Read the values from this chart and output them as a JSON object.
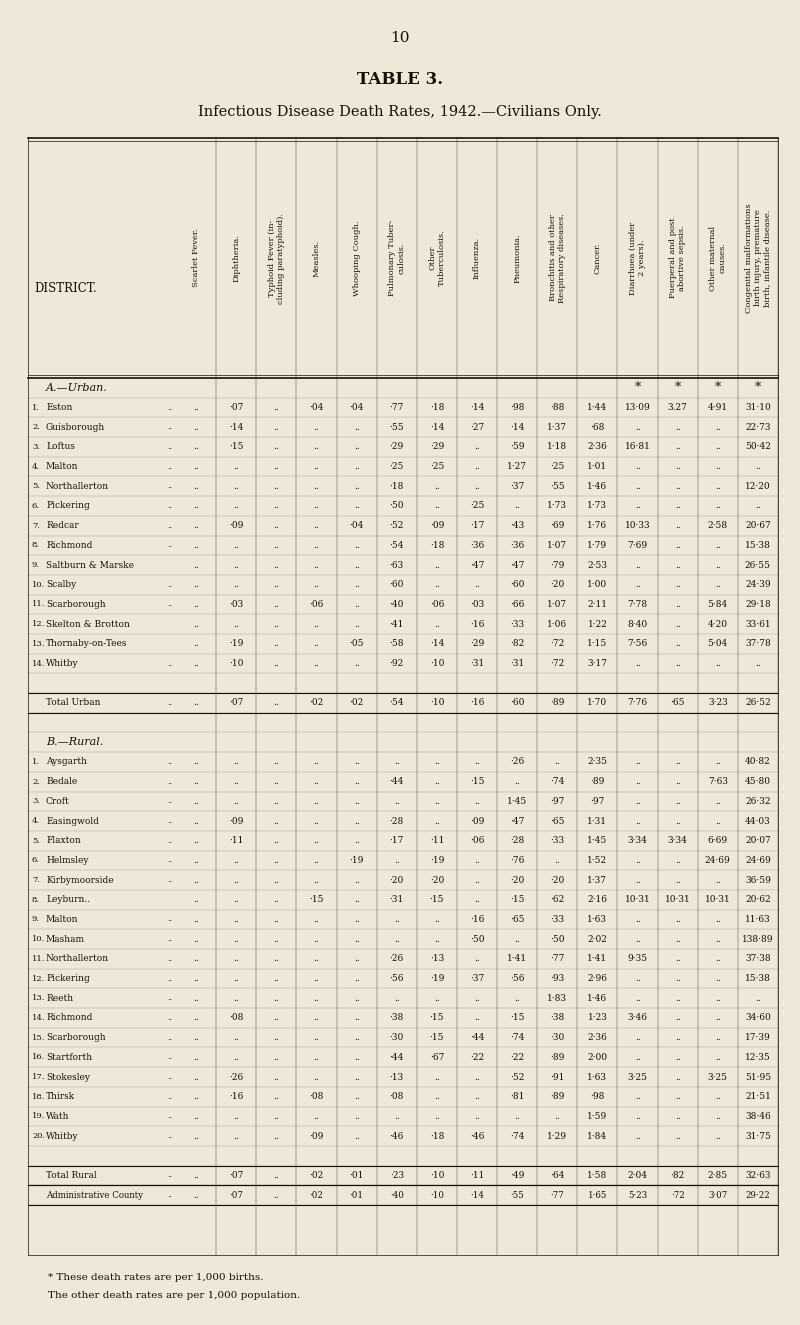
{
  "page_number": "10",
  "title": "TABLE 3.",
  "subtitle": "Infectious Disease Death Rates, 1942.—Civilians Only.",
  "background_color": "#ede8d8",
  "text_color": "#1a0f08",
  "col_headers": [
    "Scarlet Fever.",
    "Diphtheria.",
    "Typhoid Fever (in-\ncluding paratyphoid).",
    "Measles.",
    "Whooping Cough.",
    "Pulmonary Tuber-\nculosis.",
    "Other\nTuberculosis.",
    "Influenza.",
    "Pneumonia.",
    "Bronchitis and other\nRespiratory diseases.",
    "Cancer.",
    "Diarrhoea (under\n2 years).",
    "Puerperal and post\nabortive sepsis.",
    "Other maternal\ncauses.",
    "Congenital malformations\nbirth injury, premature\nbirth, infantile disease."
  ],
  "section_a_header": "A.—Urban.",
  "urban_rows": [
    {
      "num": "1.",
      "name": "Eston",
      "trail": "..",
      "vals": [
        "..",
        "·07",
        "..",
        "·04",
        "·04",
        "·77",
        "·18",
        "·14",
        "·98",
        "·88",
        "1·44",
        "13·09",
        "3.27",
        "4·91",
        "31·10"
      ]
    },
    {
      "num": "2.",
      "name": "Guisborough",
      "trail": "..",
      "vals": [
        "..",
        "·14",
        "..",
        "..",
        "..",
        "·55",
        "·14",
        "·27",
        "·14",
        "1·37",
        "·68",
        "..",
        "..",
        "..",
        "22·73"
      ]
    },
    {
      "num": "3.",
      "name": "Loftus",
      "trail": "..",
      "vals": [
        "..",
        "·15",
        "..",
        "..",
        "..",
        "·29",
        "·29",
        "..",
        "·59",
        "1·18",
        "2·36",
        "16·81",
        "..",
        "..",
        "50·42"
      ]
    },
    {
      "num": "4.",
      "name": "Malton",
      "trail": "..",
      "vals": [
        "..",
        "..",
        "..",
        "..",
        "..",
        "·25",
        "·25",
        "..",
        "1·27",
        "·25",
        "1·01",
        "..",
        "..",
        "..",
        ".."
      ]
    },
    {
      "num": "5.",
      "name": "Northallerton",
      "trail": "..",
      "vals": [
        "..",
        "..",
        "..",
        "..",
        "..",
        "·18",
        "..",
        "..",
        "·37",
        "·55",
        "1·46",
        "..",
        "..",
        "..",
        "12·20"
      ]
    },
    {
      "num": "6.",
      "name": "Pickering",
      "trail": "..",
      "vals": [
        "..",
        "..",
        "..",
        "..",
        "..",
        "·50",
        "..",
        "·25",
        "..",
        "1·73",
        "1·73",
        "..",
        "..",
        "..",
        ".."
      ]
    },
    {
      "num": "7.",
      "name": "Redcar",
      "trail": "..",
      "vals": [
        "..",
        "·09",
        "..",
        "..",
        "·04",
        "·52",
        "·09",
        "·17",
        "·43",
        "·69",
        "1·76",
        "10·33",
        "..",
        "2·58",
        "20·67"
      ]
    },
    {
      "num": "8.",
      "name": "Richmond",
      "trail": "..",
      "vals": [
        "..",
        "..",
        "..",
        "..",
        "..",
        "·54",
        "·18",
        "·36",
        "·36",
        "1·07",
        "1·79",
        "7·69",
        "..",
        "..",
        "15·38"
      ]
    },
    {
      "num": "9.",
      "name": "Saltburn & Marske",
      "trail": "",
      "vals": [
        "..",
        "..",
        "..",
        "..",
        "..",
        "·63",
        "..",
        "·47",
        "·47",
        "·79",
        "2·53",
        "..",
        "..",
        "..",
        "26·55"
      ]
    },
    {
      "num": "10.",
      "name": "Scalby",
      "trail": "..",
      "vals": [
        "..",
        "..",
        "..",
        "..",
        "..",
        "·60",
        "..",
        "..",
        "·60",
        "·20",
        "1·00",
        "..",
        "..",
        "..",
        "24·39"
      ]
    },
    {
      "num": "11.",
      "name": "Scarborough",
      "trail": "..",
      "vals": [
        "..",
        "·03",
        "..",
        "·06",
        "..",
        "·40",
        "·06",
        "·03",
        "·66",
        "1·07",
        "2·11",
        "7·78",
        "..",
        "5·84",
        "29·18"
      ]
    },
    {
      "num": "12.",
      "name": "Skelton & Brotton",
      "trail": "",
      "vals": [
        "..",
        "..",
        "..",
        "..",
        "..",
        "·41",
        "..",
        "·16",
        "·33",
        "1·06",
        "1·22",
        "8·40",
        "..",
        "4·20",
        "33·61"
      ]
    },
    {
      "num": "13.",
      "name": "Thornaby-on-Tees",
      "trail": "",
      "vals": [
        "..",
        "·19",
        "..",
        "..",
        "·05",
        "·58",
        "·14",
        "·29",
        "·82",
        "·72",
        "1·15",
        "7·56",
        "..",
        "5·04",
        "37·78"
      ]
    },
    {
      "num": "14.",
      "name": "Whitby",
      "trail": "..",
      "vals": [
        "..",
        "·10",
        "..",
        "..",
        "..",
        "·92",
        "·10",
        "·31",
        "·31",
        "·72",
        "3·17",
        "..",
        "..",
        "..",
        ".."
      ]
    }
  ],
  "urban_total": {
    "label": "Total Urban",
    "trail": "..",
    "vals": [
      "..",
      "·07",
      "..",
      "·02",
      "·02",
      "·54",
      "·10",
      "·16",
      "·60",
      "·89",
      "1·70",
      "7·76",
      "·65",
      "3·23",
      "26·52"
    ]
  },
  "section_b_header": "B.—Rural.",
  "rural_rows": [
    {
      "num": "1.",
      "name": "Aysgarth",
      "trail": "..",
      "vals": [
        "..",
        "..",
        "..",
        "..",
        "..",
        "..",
        "..",
        "..",
        "·26",
        "..",
        "2·35",
        "..",
        "..",
        "..",
        "40·82"
      ]
    },
    {
      "num": "2.",
      "name": "Bedale",
      "trail": "..",
      "vals": [
        "..",
        "..",
        "..",
        "..",
        "..",
        "·44",
        "..",
        "·15",
        "..",
        "·74",
        "·89",
        "..",
        "..",
        "7·63",
        "45·80"
      ]
    },
    {
      "num": "3.",
      "name": "Croft",
      "trail": "..",
      "vals": [
        "..",
        "..",
        "..",
        "..",
        "..",
        "..",
        "..",
        "..",
        "1·45",
        "·97",
        "·97",
        "..",
        "..",
        "..",
        "26·32"
      ]
    },
    {
      "num": "4.",
      "name": "Easingwold",
      "trail": "..",
      "vals": [
        "..",
        "·09",
        "..",
        "..",
        "..",
        "·28",
        "..",
        "·09",
        "·47",
        "·65",
        "1·31",
        "..",
        "..",
        "..",
        "44·03"
      ]
    },
    {
      "num": "5.",
      "name": "Flaxton",
      "trail": "..",
      "vals": [
        "..",
        "·11",
        "..",
        "..",
        "..",
        "·17",
        "·11",
        "·06",
        "·28",
        "·33",
        "1·45",
        "3·34",
        "3·34",
        "6·69",
        "20·07"
      ]
    },
    {
      "num": "6.",
      "name": "Helmsley",
      "trail": "..",
      "vals": [
        "..",
        "..",
        "..",
        "..",
        "·19",
        "..",
        "·19",
        "..",
        "·76",
        "..",
        "1·52",
        "..",
        "..",
        "24·69",
        "24·69"
      ]
    },
    {
      "num": "7.",
      "name": "Kirbymoorside",
      "trail": "..",
      "vals": [
        "..",
        "..",
        "..",
        "..",
        "..",
        "·20",
        "·20",
        "..",
        "·20",
        "·20",
        "1·37",
        "..",
        "..",
        "..",
        "36·59"
      ]
    },
    {
      "num": "8.",
      "name": "Leyburn..",
      "trail": "",
      "vals": [
        "..",
        "..",
        "..",
        "·15",
        "..",
        "·31",
        "·15",
        "..",
        "·15",
        "·62",
        "2·16",
        "10·31",
        "10·31",
        "10·31",
        "20·62"
      ]
    },
    {
      "num": "9.",
      "name": "Malton",
      "trail": "..",
      "vals": [
        "..",
        "..",
        "..",
        "..",
        "..",
        "..",
        "..",
        "·16",
        "·65",
        "·33",
        "1·63",
        "..",
        "..",
        "..",
        "11·63"
      ]
    },
    {
      "num": "10.",
      "name": "Masham",
      "trail": "..",
      "vals": [
        "..",
        "..",
        "..",
        "..",
        "..",
        "..",
        "..",
        "·50",
        "..",
        "·50",
        "2·02",
        "..",
        "..",
        "..",
        "138·89"
      ]
    },
    {
      "num": "11.",
      "name": "Northallerton",
      "trail": "..",
      "vals": [
        "..",
        "..",
        "..",
        "..",
        "..",
        "·26",
        "·13",
        "..",
        "1·41",
        "·77",
        "1·41",
        "9·35",
        "..",
        "..",
        "37·38"
      ]
    },
    {
      "num": "12.",
      "name": "Pickering",
      "trail": "..",
      "vals": [
        "..",
        "..",
        "..",
        "..",
        "..",
        "·56",
        "·19",
        "·37",
        "·56",
        "·93",
        "2·96",
        "..",
        "..",
        "..",
        "15·38"
      ]
    },
    {
      "num": "13.",
      "name": "Reeth",
      "trail": "..",
      "vals": [
        "..",
        "..",
        "..",
        "..",
        "..",
        "..",
        "..",
        "..",
        "..",
        "1·83",
        "1·46",
        "..",
        "..",
        "..",
        ".."
      ]
    },
    {
      "num": "14.",
      "name": "Richmond",
      "trail": "..",
      "vals": [
        "..",
        "·08",
        "..",
        "..",
        "..",
        "·38",
        "·15",
        "..",
        "·15",
        "·38",
        "1·23",
        "3·46",
        "..",
        "..",
        "34·60"
      ]
    },
    {
      "num": "15.",
      "name": "Scarborough",
      "trail": "..",
      "vals": [
        "..",
        "..",
        "..",
        "..",
        "..",
        "·30",
        "·15",
        "·44",
        "·74",
        "·30",
        "2·36",
        "..",
        "..",
        "..",
        "17·39"
      ]
    },
    {
      "num": "16.",
      "name": "Startforth",
      "trail": "..",
      "vals": [
        "..",
        "..",
        "..",
        "..",
        "..",
        "·44",
        "·67",
        "·22",
        "·22",
        "·89",
        "2·00",
        "..",
        "..",
        "..",
        "12·35"
      ]
    },
    {
      "num": "17.",
      "name": "Stokesley",
      "trail": "..",
      "vals": [
        "..",
        "·26",
        "..",
        "..",
        "..",
        "·13",
        "..",
        "..",
        "·52",
        "·91",
        "1·63",
        "3·25",
        "..",
        "3·25",
        "51·95"
      ]
    },
    {
      "num": "18.",
      "name": "Thirsk",
      "trail": "..",
      "vals": [
        "..",
        "·16",
        "..",
        "·08",
        "..",
        "·08",
        "..",
        "..",
        "·81",
        "·89",
        "·98",
        "..",
        "..",
        "..",
        "21·51"
      ]
    },
    {
      "num": "19.",
      "name": "Wath",
      "trail": "..",
      "vals": [
        "..",
        "..",
        "..",
        "..",
        "..",
        "..",
        "..",
        "..",
        "..",
        "..",
        "1·59",
        "..",
        "..",
        "..",
        "38·46"
      ]
    },
    {
      "num": "20.",
      "name": "Whitby",
      "trail": "..",
      "vals": [
        "..",
        "..",
        "..",
        "·09",
        "..",
        "·46",
        "·18",
        "·46",
        "·74",
        "1·29",
        "1·84",
        "..",
        "..",
        "..",
        "31·75"
      ]
    }
  ],
  "rural_total": {
    "label": "Total Rural",
    "trail": "..",
    "vals": [
      "..",
      "·07",
      "..",
      "·02",
      "·01",
      "·23",
      "·10",
      "·11",
      "·49",
      "·64",
      "1·58",
      "2·04",
      "·82",
      "2·85",
      "32·63"
    ]
  },
  "admin_total": {
    "label": "Administrative County",
    "trail": "..",
    "vals": [
      "..",
      "·07",
      "..",
      "·02",
      "·01",
      "·40",
      "·10",
      "·14",
      "·55",
      "·77",
      "1·65",
      "5·23",
      "·72",
      "3·07",
      "29·22"
    ]
  },
  "footnote1": "* These death rates are per 1,000 births.",
  "footnote2": "The other death rates are per 1,000 population."
}
